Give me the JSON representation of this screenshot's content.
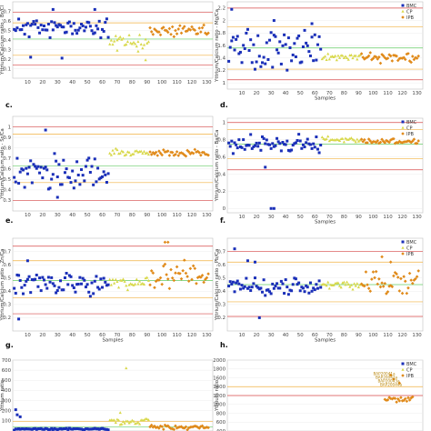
{
  "colors": {
    "BMC": "#1a2fb8",
    "CP": "#d8d84a",
    "IPB": "#e08a1a",
    "limit_red": "#d84a4a",
    "limit_orange": "#f0b040",
    "limit_green": "#66cc66",
    "frame": "#bfbfbf"
  },
  "chart_data": [
    {
      "panel": "b",
      "type": "scatter",
      "ylabel": "Yttrium/Calcium ratio - Br/Cl",
      "xlabel": "",
      "ylim": [
        0,
        0.8
      ],
      "yticks": [
        0.1,
        0.2,
        0.3,
        0.4,
        0.5,
        0.6,
        0.7
      ],
      "xlim": [
        0,
        134
      ],
      "xticks": [
        10,
        20,
        30,
        40,
        50,
        60,
        70,
        80,
        90,
        100,
        110,
        120,
        130
      ],
      "limits": {
        "red_top": 0.69,
        "orange_top": 0.58,
        "center": 0.41,
        "orange_bottom": 0.24,
        "red_bottom": 0.14
      },
      "legend": [],
      "series": [
        {
          "name": "BMC",
          "seed": 11,
          "n": 64,
          "x0": 1,
          "center": 0.53,
          "spread": 0.07,
          "outliers": [
            [
              12,
              0.22
            ],
            [
              27,
              0.72
            ],
            [
              33,
              0.21
            ],
            [
              55,
              0.72
            ]
          ]
        },
        {
          "name": "CP",
          "seed": 12,
          "n": 27,
          "x0": 65,
          "center": 0.38,
          "spread": 0.05,
          "outliers": [
            [
              70,
              0.29
            ],
            [
              84,
              0.28
            ],
            [
              89,
              0.19
            ]
          ]
        },
        {
          "name": "IPB",
          "seed": 13,
          "n": 40,
          "x0": 92,
          "center": 0.5,
          "spread": 0.04,
          "outliers": []
        }
      ]
    },
    {
      "panel": "c",
      "type": "scatter",
      "ylabel": "Yttrium/Calcium ratio - Mg/Ca",
      "xlabel": "Samples",
      "ylim": [
        0.9,
        2.3
      ],
      "yticks": [
        1.0,
        1.2,
        1.4,
        1.6,
        1.8,
        2.0,
        2.2
      ],
      "xlim": [
        0,
        134
      ],
      "xticks": [
        10,
        20,
        30,
        40,
        50,
        60,
        70,
        80,
        90,
        100,
        110,
        120,
        130
      ],
      "limits": {
        "red_top": 2.2,
        "orange_top": 1.9,
        "center": 1.56,
        "orange_bottom": 1.22,
        "red_bottom": 1.05
      },
      "legend": [
        "BMC",
        "CP",
        "IPB"
      ],
      "series": [
        {
          "name": "BMC",
          "seed": 21,
          "n": 64,
          "x0": 1,
          "center": 1.55,
          "spread": 0.2,
          "outliers": [
            [
              3,
              2.18
            ],
            [
              32,
              2.0
            ],
            [
              58,
              1.95
            ]
          ]
        },
        {
          "name": "CP",
          "seed": 22,
          "n": 27,
          "x0": 65,
          "center": 1.42,
          "spread": 0.03,
          "outliers": []
        },
        {
          "name": "IPB",
          "seed": 23,
          "n": 40,
          "x0": 92,
          "center": 1.4,
          "spread": 0.05,
          "outliers": []
        }
      ]
    },
    {
      "panel": "d",
      "type": "scatter",
      "ylabel": "Yttrium/Calcium ratio - Sr/Ca",
      "xlabel": "",
      "ylim": [
        0.2,
        1.1
      ],
      "yticks": [
        0.3,
        0.4,
        0.5,
        0.6,
        0.7,
        0.8,
        0.9,
        1.0
      ],
      "xlim": [
        0,
        134
      ],
      "xticks": [
        10,
        20,
        30,
        40,
        50,
        60,
        70,
        80,
        90,
        100,
        110,
        120,
        130
      ],
      "limits": {
        "red_top": 1.0,
        "orange_top": 0.93,
        "center": 0.63,
        "orange_bottom": 0.47,
        "red_bottom": 0.3
      },
      "legend": [],
      "series": [
        {
          "name": "BMC",
          "seed": 31,
          "n": 64,
          "x0": 1,
          "center": 0.56,
          "spread": 0.11,
          "outliers": [
            [
              22,
              0.97
            ],
            [
              30,
              0.33
            ]
          ]
        },
        {
          "name": "CP",
          "seed": 32,
          "n": 27,
          "x0": 65,
          "center": 0.76,
          "spread": 0.02,
          "outliers": []
        },
        {
          "name": "IPB",
          "seed": 33,
          "n": 40,
          "x0": 92,
          "center": 0.75,
          "spread": 0.02,
          "outliers": []
        }
      ]
    },
    {
      "panel": "e",
      "type": "scatter",
      "ylabel": "Yttrium/Calcium ratio - Ba/Ca",
      "xlabel": "Samples",
      "ylim": [
        -0.05,
        1.05
      ],
      "yticks": [
        0,
        0.2,
        0.4,
        0.6,
        0.8,
        1.0
      ],
      "xlim": [
        0,
        134
      ],
      "xticks": [
        10,
        20,
        30,
        40,
        50,
        60,
        70,
        80,
        90,
        100,
        110,
        120,
        130
      ],
      "limits": {
        "red_top": 1.0,
        "orange_top": 0.92,
        "center": 0.75,
        "orange_bottom": 0.58,
        "red_bottom": 0.45
      },
      "legend": [
        "BMC",
        "CP",
        "IPB"
      ],
      "series": [
        {
          "name": "BMC",
          "seed": 41,
          "n": 64,
          "x0": 1,
          "center": 0.74,
          "spread": 0.08,
          "outliers": [
            [
              30,
              0.0
            ],
            [
              32,
              0.0
            ],
            [
              26,
              0.48
            ]
          ]
        },
        {
          "name": "CP",
          "seed": 42,
          "n": 27,
          "x0": 65,
          "center": 0.8,
          "spread": 0.02,
          "outliers": []
        },
        {
          "name": "IPB",
          "seed": 43,
          "n": 40,
          "x0": 92,
          "center": 0.78,
          "spread": 0.02,
          "outliers": []
        }
      ]
    },
    {
      "panel": "f",
      "type": "scatter",
      "ylabel": "Yttrium/Calcium ratio - Zn/Ca",
      "xlabel": "Samples",
      "ylim": [
        0.1,
        0.8
      ],
      "yticks": [
        0.2,
        0.3,
        0.4,
        0.5,
        0.6,
        0.7
      ],
      "xlim": [
        0,
        134
      ],
      "xticks": [
        10,
        20,
        30,
        40,
        50,
        60,
        70,
        80,
        90,
        100,
        110,
        120,
        130
      ],
      "limits": {
        "red_top": 0.74,
        "orange_top": 0.63,
        "center": 0.48,
        "orange_bottom": 0.35,
        "red_bottom": 0.23
      },
      "legend": [],
      "series": [
        {
          "name": "BMC",
          "seed": 51,
          "n": 64,
          "x0": 1,
          "center": 0.45,
          "spread": 0.06,
          "outliers": [
            [
              4,
              0.19
            ],
            [
              10,
              0.63
            ]
          ]
        },
        {
          "name": "CP",
          "seed": 52,
          "n": 27,
          "x0": 65,
          "center": 0.46,
          "spread": 0.04,
          "outliers": []
        },
        {
          "name": "IPB",
          "seed": 53,
          "n": 40,
          "x0": 92,
          "center": 0.52,
          "spread": 0.08,
          "outliers": [
            [
              102,
              0.77
            ],
            [
              104,
              0.77
            ]
          ]
        }
      ]
    },
    {
      "panel": "g",
      "type": "scatter",
      "ylabel": "Yttrium/Calcium ratio - Pb/Ca",
      "xlabel": "Samples",
      "ylim": [
        0.1,
        0.8
      ],
      "yticks": [
        0.2,
        0.3,
        0.4,
        0.5,
        0.6,
        0.7
      ],
      "xlim": [
        0,
        134
      ],
      "xticks": [
        10,
        20,
        30,
        40,
        50,
        60,
        70,
        80,
        90,
        100,
        110,
        120,
        130
      ],
      "limits": {
        "red_top": 0.7,
        "orange_top": 0.62,
        "center": 0.45,
        "orange_bottom": 0.32,
        "red_bottom": 0.21
      },
      "legend": [
        "BMC",
        "CP",
        "IPB"
      ],
      "series": [
        {
          "name": "BMC",
          "seed": 61,
          "n": 64,
          "x0": 1,
          "center": 0.43,
          "spread": 0.05,
          "outliers": [
            [
              5,
              0.72
            ],
            [
              14,
              0.63
            ],
            [
              19,
              0.62
            ],
            [
              22,
              0.2
            ]
          ]
        },
        {
          "name": "CP",
          "seed": 62,
          "n": 27,
          "x0": 65,
          "center": 0.45,
          "spread": 0.02,
          "outliers": []
        },
        {
          "name": "IPB",
          "seed": 63,
          "n": 40,
          "x0": 92,
          "center": 0.47,
          "spread": 0.06,
          "outliers": [
            [
              106,
              0.66
            ],
            [
              112,
              0.62
            ]
          ]
        }
      ]
    },
    {
      "panel": "h",
      "type": "scatter",
      "ylabel": "Yttrium ratio",
      "xlabel": "",
      "ylim": [
        0,
        700
      ],
      "yticks": [
        100,
        200,
        300,
        400,
        500,
        600,
        700
      ],
      "xlim": [
        0,
        134
      ],
      "xticks": [],
      "limits": {
        "red_top": null,
        "orange_top": 95,
        "center": 40,
        "orange_bottom": null,
        "red_bottom": null
      },
      "legend": [],
      "series": [
        {
          "name": "BMC",
          "seed": 71,
          "n": 64,
          "x0": 1,
          "center": 20,
          "spread": 6,
          "outliers": [
            [
              2,
              210
            ],
            [
              3,
              160
            ],
            [
              5,
              140
            ]
          ]
        },
        {
          "name": "CP",
          "seed": 72,
          "n": 27,
          "x0": 65,
          "center": 90,
          "spread": 25,
          "outliers": [
            [
              76,
              620
            ],
            [
              72,
              180
            ]
          ]
        },
        {
          "name": "IPB",
          "seed": 73,
          "n": 40,
          "x0": 92,
          "center": 35,
          "spread": 15,
          "outliers": []
        }
      ]
    },
    {
      "panel": "i",
      "type": "scatter",
      "ylabel": "Yttrium ratio",
      "xlabel": "",
      "ylim": [
        400,
        2000
      ],
      "yticks": [
        400,
        600,
        800,
        1000,
        1200,
        1400,
        1600,
        1800,
        2000
      ],
      "xlim": [
        0,
        134
      ],
      "xticks": [],
      "limits": {
        "red_top": null,
        "orange_top": 1400,
        "center": null,
        "orange_bottom": null,
        "red_bottom": 1200
      },
      "legend": [
        "BMC",
        "CP",
        "IPB"
      ],
      "point_labels": [
        "BAP20041a",
        "BAP20042a",
        "BAP20043a",
        "BAP20044a"
      ],
      "series": [
        {
          "name": "BMC",
          "seed": 81,
          "n": 0,
          "x0": 1,
          "center": 0,
          "spread": 0,
          "outliers": []
        },
        {
          "name": "CP",
          "seed": 82,
          "n": 0,
          "x0": 65,
          "center": 0,
          "spread": 0,
          "outliers": []
        },
        {
          "name": "IPB",
          "seed": 83,
          "n": 20,
          "x0": 108,
          "center": 1130,
          "spread": 50,
          "outliers": [
            [
              112,
              1660
            ],
            [
              114,
              1570
            ],
            [
              118,
              1480
            ]
          ]
        }
      ]
    }
  ],
  "panel_letters": {
    "c": "c.",
    "d": "d.",
    "e": "e.",
    "f": "f.",
    "g": "g.",
    "h": "h."
  },
  "xlabel_text": "Samples"
}
